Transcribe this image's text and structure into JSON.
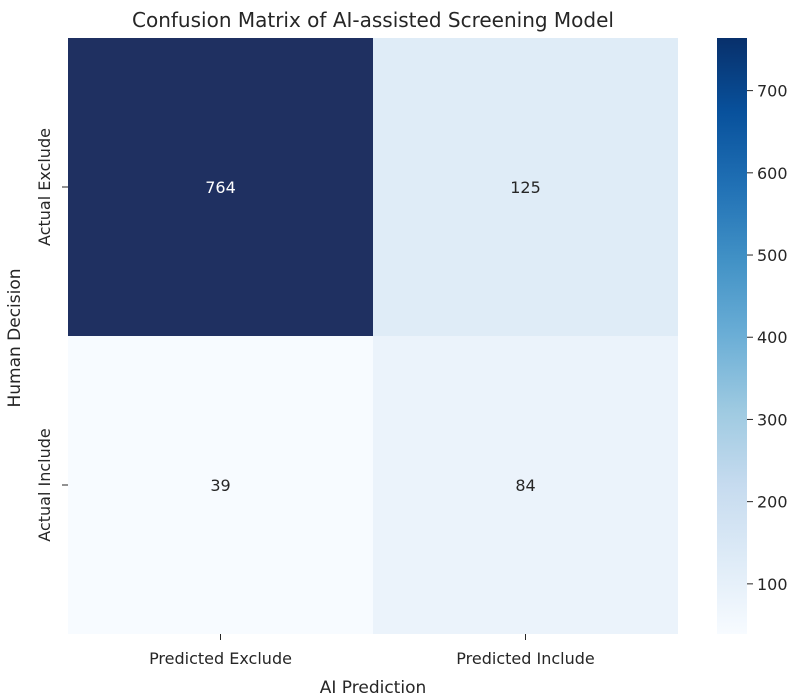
{
  "chart_data": {
    "type": "heatmap",
    "title": "Confusion Matrix of AI-assisted Screening Model",
    "xlabel": "AI Prediction",
    "ylabel": "Human Decision",
    "x_categories": [
      "Predicted Exclude",
      "Predicted Include"
    ],
    "y_categories": [
      "Actual Exclude",
      "Actual Include"
    ],
    "values": [
      [
        764,
        125
      ],
      [
        39,
        84
      ]
    ],
    "colormap": "Blues",
    "colorbar": {
      "min": 39,
      "max": 764,
      "ticks": [
        100,
        200,
        300,
        400,
        500,
        600,
        700
      ]
    },
    "annotations": true,
    "colors": {
      "scale": [
        "#f7fbff",
        "#deebf7",
        "#c6dbef",
        "#9ecae1",
        "#6baed6",
        "#4292c6",
        "#2171b5",
        "#08519c",
        "#08306b"
      ],
      "max_cell": "#1f3061"
    }
  }
}
